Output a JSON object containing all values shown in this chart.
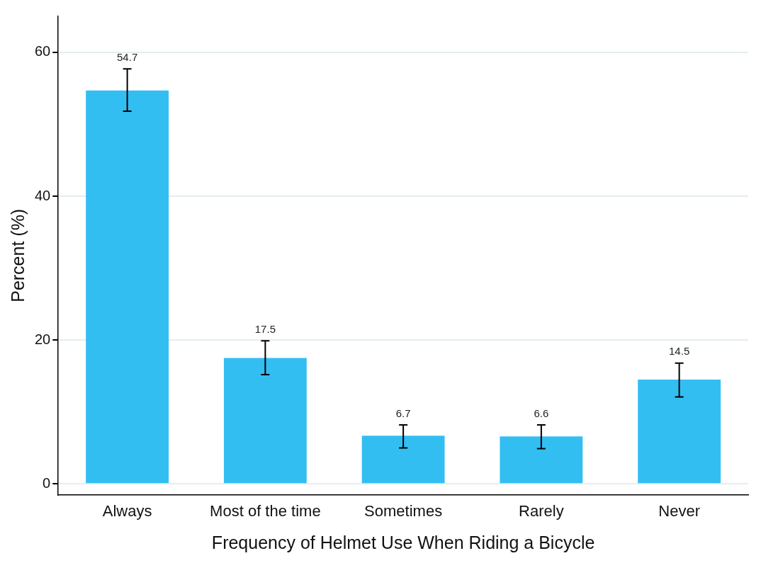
{
  "chart_data": {
    "type": "bar",
    "xlabel": "Frequency of Helmet Use When Riding a Bicycle",
    "ylabel": "Percent (%)",
    "categories": [
      "Always",
      "Most of the time",
      "Sometimes",
      "Rarely",
      "Never"
    ],
    "values": [
      54.7,
      17.5,
      6.7,
      6.6,
      14.5
    ],
    "color": "#33bef2",
    "errors": [
      [
        51.8,
        57.7
      ],
      [
        15.2,
        19.9
      ],
      [
        5.0,
        8.2
      ],
      [
        4.9,
        8.2
      ],
      [
        12.1,
        16.8
      ]
    ],
    "data_labels": true,
    "ylim": [
      -1.5,
      65
    ],
    "yticks": [
      0,
      20,
      40,
      60
    ],
    "grid": "y",
    "legend": false
  }
}
